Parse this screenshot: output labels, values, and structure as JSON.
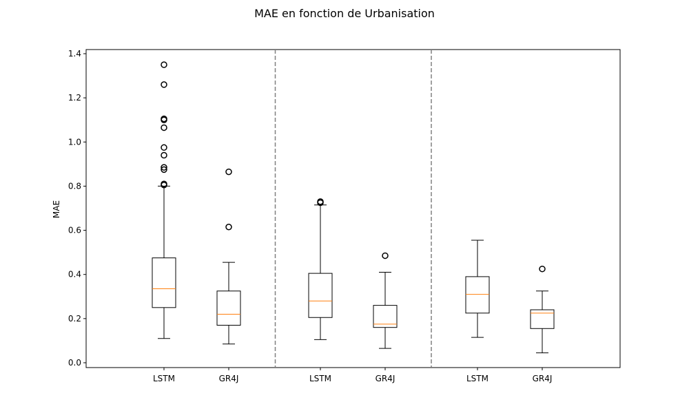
{
  "chart_data": {
    "type": "box",
    "title": "MAE en fonction de Urbanisation",
    "xlabel": "",
    "ylabel": "MAE",
    "ylim": [
      -0.02,
      1.42
    ],
    "yticks": [
      0.0,
      0.2,
      0.4,
      0.6,
      0.8,
      1.0,
      1.2,
      1.4
    ],
    "ytick_labels": [
      "0.0",
      "0.2",
      "0.4",
      "0.6",
      "0.8",
      "1.0",
      "1.2",
      "1.4"
    ],
    "groups": [
      {
        "boxes": [
          {
            "label": "LSTM",
            "whisker_low": 0.11,
            "q1": 0.25,
            "median": 0.335,
            "q3": 0.475,
            "whisker_high": 0.8,
            "outliers": [
              0.805,
              0.81,
              0.875,
              0.885,
              0.94,
              0.975,
              1.065,
              1.1,
              1.105,
              1.26,
              1.35
            ]
          },
          {
            "label": "GR4J",
            "whisker_low": 0.085,
            "q1": 0.17,
            "median": 0.22,
            "q3": 0.325,
            "whisker_high": 0.455,
            "outliers": [
              0.615,
              0.865
            ]
          }
        ]
      },
      {
        "boxes": [
          {
            "label": "LSTM",
            "whisker_low": 0.105,
            "q1": 0.205,
            "median": 0.28,
            "q3": 0.405,
            "whisker_high": 0.715,
            "outliers": [
              0.725,
              0.73
            ]
          },
          {
            "label": "GR4J",
            "whisker_low": 0.065,
            "q1": 0.16,
            "median": 0.175,
            "q3": 0.26,
            "whisker_high": 0.41,
            "outliers": [
              0.485
            ]
          }
        ]
      },
      {
        "boxes": [
          {
            "label": "LSTM",
            "whisker_low": 0.115,
            "q1": 0.225,
            "median": 0.31,
            "q3": 0.39,
            "whisker_high": 0.555,
            "outliers": []
          },
          {
            "label": "GR4J",
            "whisker_low": 0.045,
            "q1": 0.155,
            "median": 0.225,
            "q3": 0.24,
            "whisker_high": 0.325,
            "outliers": [
              0.425
            ]
          }
        ]
      }
    ],
    "group_separators": "dashed-vertical",
    "colors": {
      "box": "#000000",
      "median": "#ff7f0e",
      "separator": "#808080",
      "outlier": "#000000"
    }
  }
}
